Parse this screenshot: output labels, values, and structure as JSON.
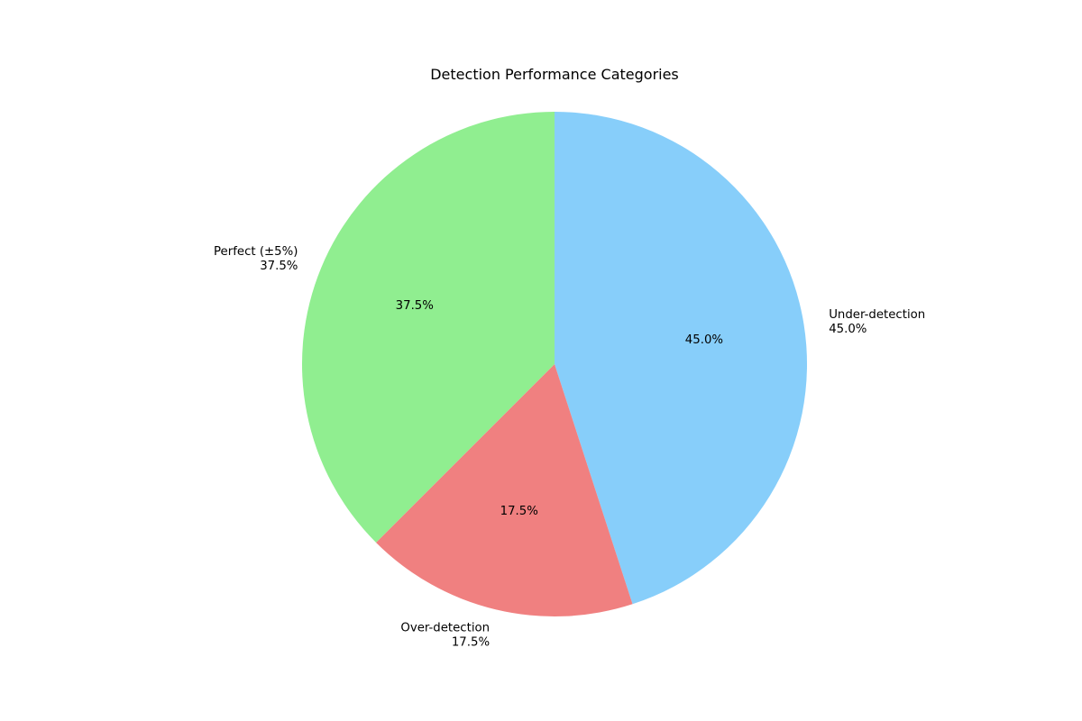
{
  "chart_data": {
    "type": "pie",
    "title": "Detection Performance Categories",
    "slices": [
      {
        "label": "Under-detection",
        "value": 45.0,
        "pct_text": "45.0%",
        "outer_pct_text": "45.0%",
        "color": "#87CEFA"
      },
      {
        "label": "Over-detection",
        "value": 17.5,
        "pct_text": "17.5%",
        "outer_pct_text": "17.5%",
        "color": "#F08080"
      },
      {
        "label": "Perfect (±5%)",
        "value": 37.5,
        "pct_text": "37.5%",
        "outer_pct_text": "37.5%",
        "color": "#90EE90"
      }
    ],
    "start_angle_deg": 90,
    "direction": "clockwise",
    "legend": "none"
  }
}
